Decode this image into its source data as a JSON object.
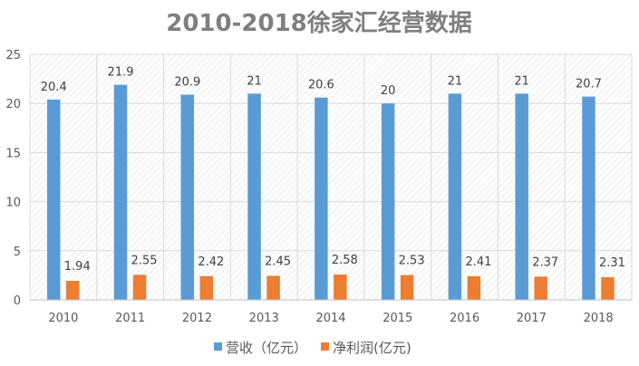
{
  "chart_data": {
    "type": "bar",
    "title": "2010-2018徐家汇经营数据",
    "categories": [
      "2010",
      "2011",
      "2012",
      "2013",
      "2014",
      "2015",
      "2016",
      "2017",
      "2018"
    ],
    "series": [
      {
        "name": "营收（亿元）",
        "color": "#5b9bd5",
        "values": [
          20.4,
          21.9,
          20.9,
          21,
          20.6,
          20,
          21,
          21,
          20.7
        ]
      },
      {
        "name": "净利润(亿元)",
        "color": "#ed7d31",
        "values": [
          1.94,
          2.55,
          2.42,
          2.45,
          2.58,
          2.53,
          2.41,
          2.37,
          2.31
        ]
      }
    ],
    "ylim": [
      0,
      25
    ],
    "yticks": [
      0,
      5,
      10,
      15,
      20,
      25
    ],
    "grid": true,
    "legend": "bottom",
    "background": "diagonal-hatch"
  }
}
